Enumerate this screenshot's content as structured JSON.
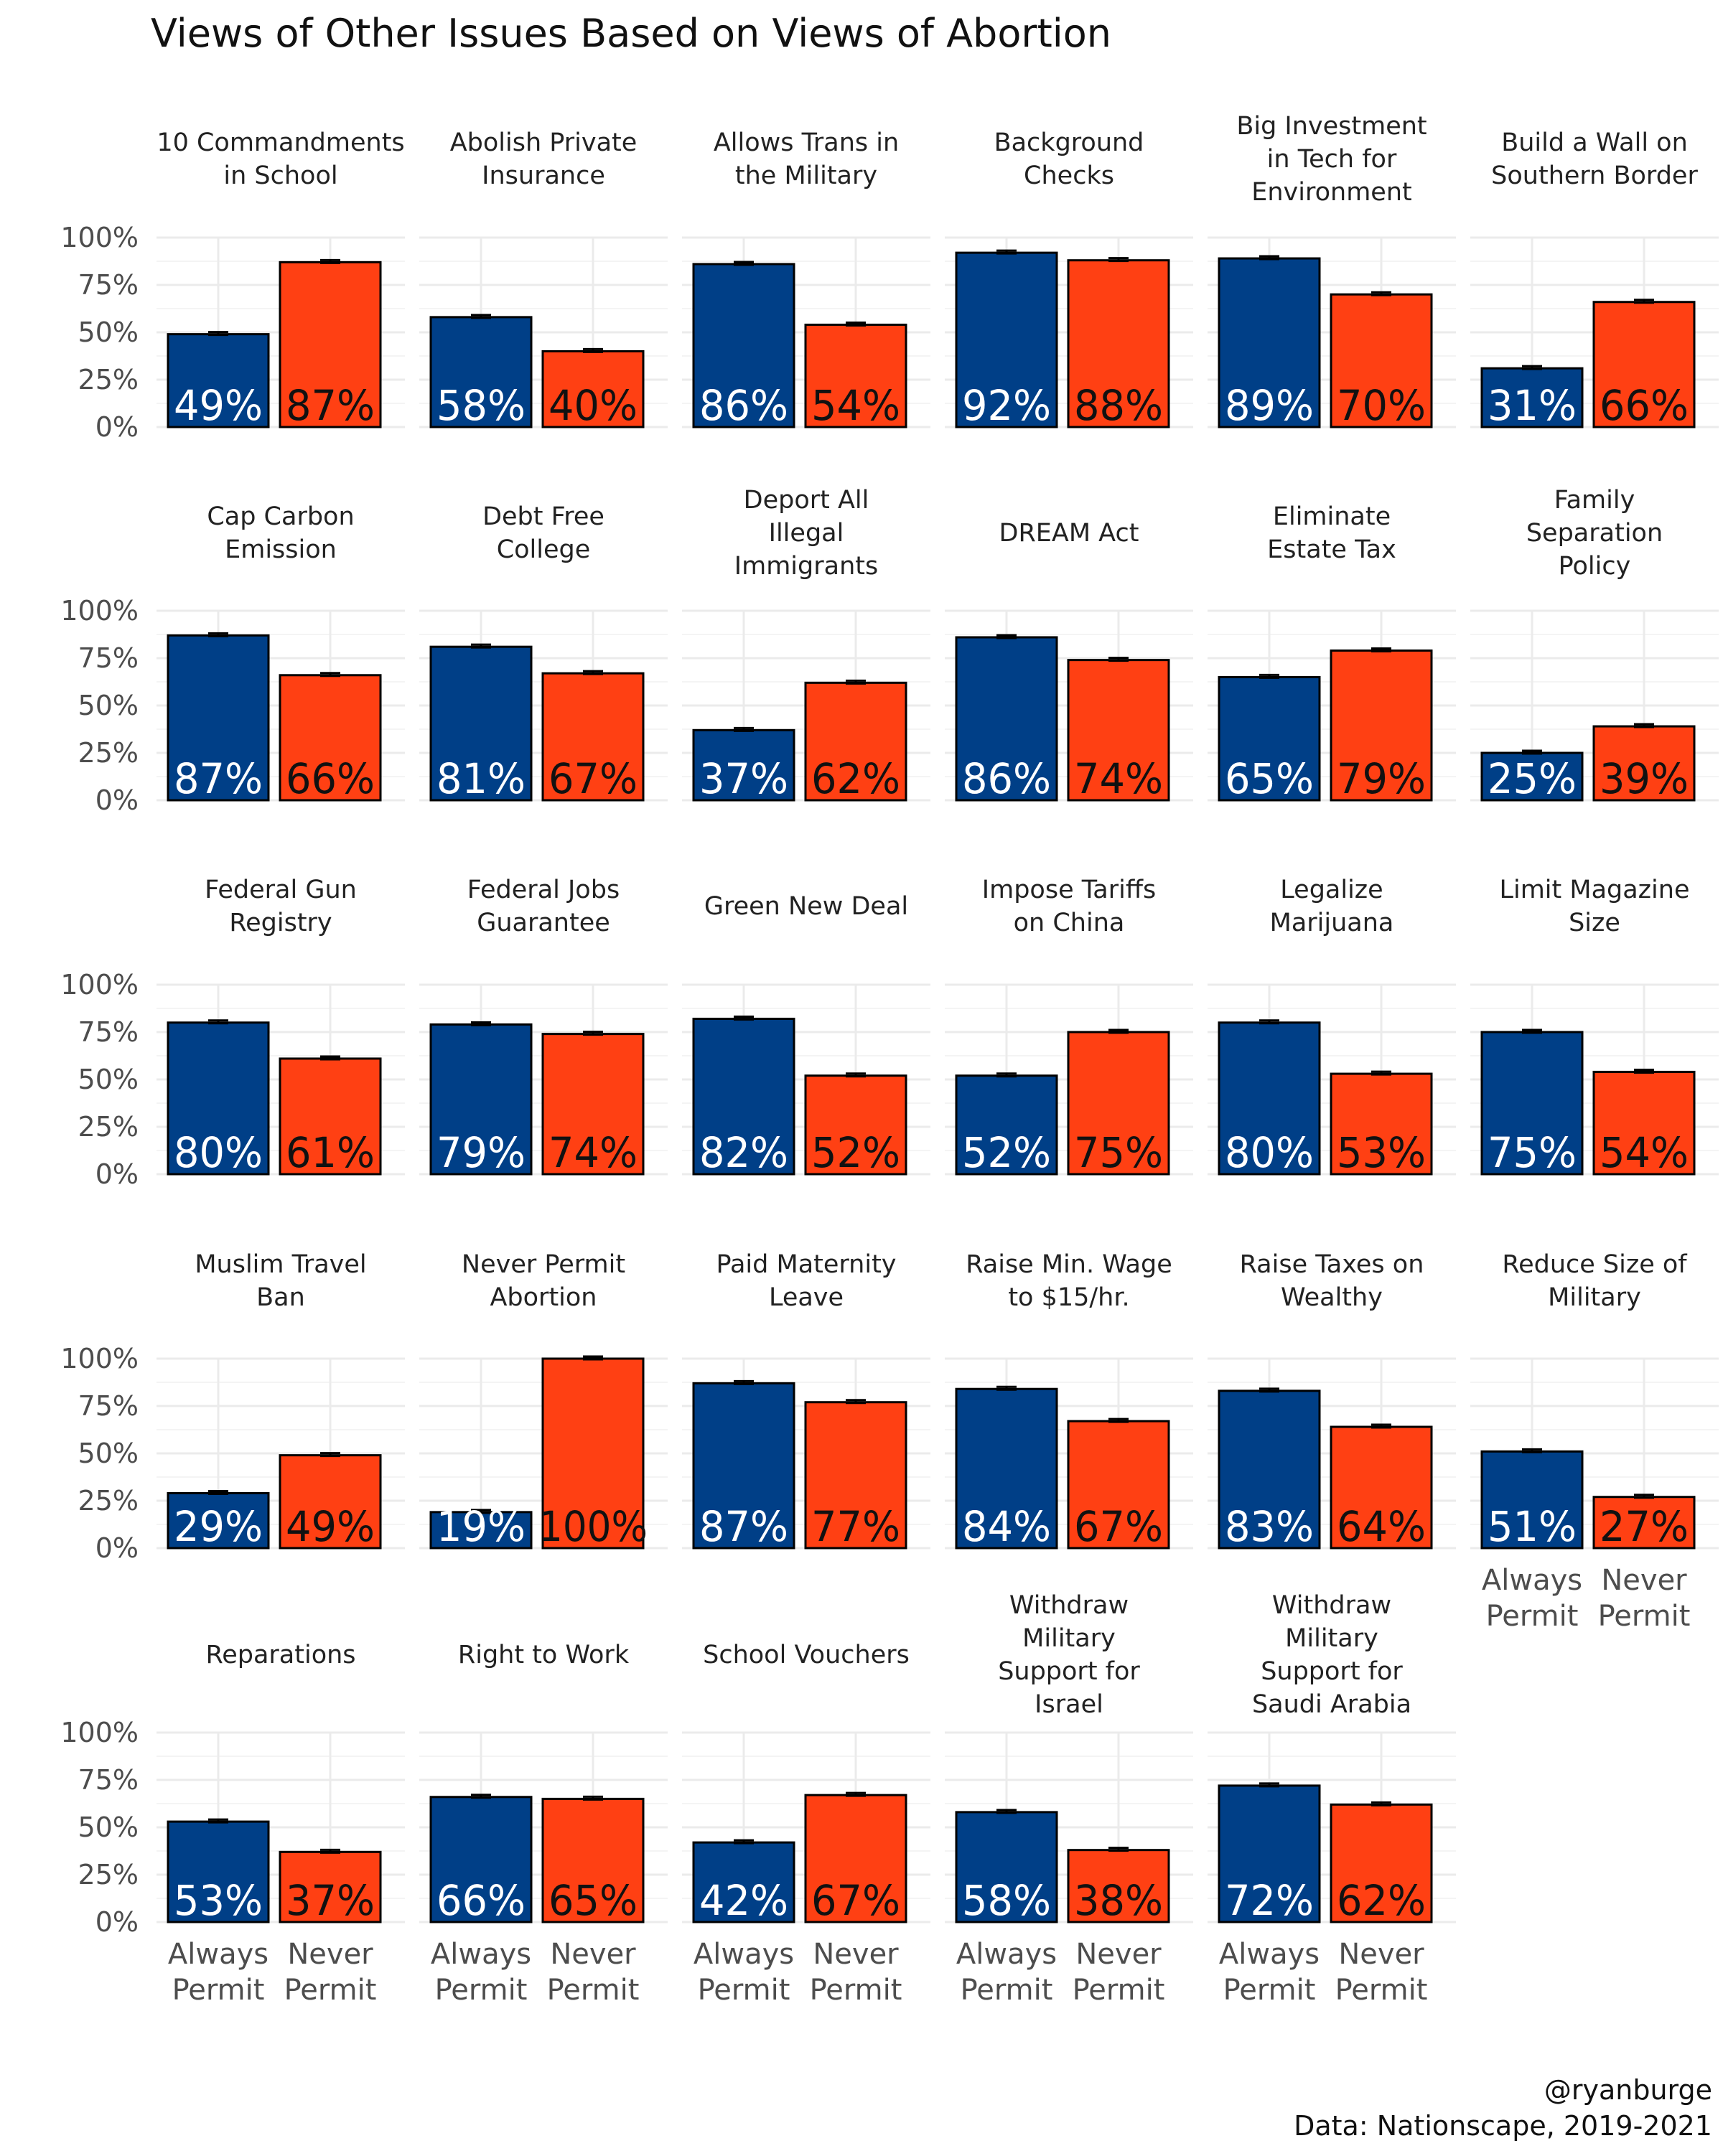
{
  "title": "Views of Other Issues Based on Views of Abortion",
  "caption": [
    "@ryanburge",
    "Data: Nationscape, 2019-2021"
  ],
  "colors": {
    "always": "#003F87",
    "never": "#FF4013",
    "outline": "#000000"
  },
  "chart_data": {
    "type": "bar",
    "layout": "faceted 6 columns",
    "categories": [
      "Always Permit",
      "Never Permit"
    ],
    "category_tick_lines": [
      [
        "Always",
        "Permit"
      ],
      [
        "Never",
        "Permit"
      ]
    ],
    "ylim": [
      0,
      1
    ],
    "yticks": [
      {
        "value": 0,
        "label": "0%"
      },
      {
        "value": 0.25,
        "label": "25%"
      },
      {
        "value": 0.5,
        "label": "50%"
      },
      {
        "value": 0.75,
        "label": "75%"
      },
      {
        "value": 1,
        "label": "100%"
      }
    ],
    "grid": true,
    "error_bars": true,
    "panels": [
      {
        "title": [
          "10 Commandments",
          "in School"
        ],
        "values": [
          0.49,
          0.87
        ],
        "labels": [
          "49%",
          "87%"
        ]
      },
      {
        "title": [
          "Abolish Private",
          "Insurance"
        ],
        "values": [
          0.58,
          0.4
        ],
        "labels": [
          "58%",
          "40%"
        ]
      },
      {
        "title": [
          "Allows Trans in",
          "the Military"
        ],
        "values": [
          0.86,
          0.54
        ],
        "labels": [
          "86%",
          "54%"
        ]
      },
      {
        "title": [
          "Background",
          "Checks"
        ],
        "values": [
          0.92,
          0.88
        ],
        "labels": [
          "92%",
          "88%"
        ]
      },
      {
        "title": [
          "Big Investment",
          "in Tech for",
          "Environment"
        ],
        "values": [
          0.89,
          0.7
        ],
        "labels": [
          "89%",
          "70%"
        ]
      },
      {
        "title": [
          "Build a Wall on",
          "Southern Border"
        ],
        "values": [
          0.31,
          0.66
        ],
        "labels": [
          "31%",
          "66%"
        ]
      },
      {
        "title": [
          "Cap Carbon",
          "Emission"
        ],
        "values": [
          0.87,
          0.66
        ],
        "labels": [
          "87%",
          "66%"
        ]
      },
      {
        "title": [
          "Debt Free",
          "College"
        ],
        "values": [
          0.81,
          0.67
        ],
        "labels": [
          "81%",
          "67%"
        ]
      },
      {
        "title": [
          "Deport All",
          "Illegal",
          "Immigrants"
        ],
        "values": [
          0.37,
          0.62
        ],
        "labels": [
          "37%",
          "62%"
        ]
      },
      {
        "title": [
          "DREAM Act"
        ],
        "values": [
          0.86,
          0.74
        ],
        "labels": [
          "86%",
          "74%"
        ]
      },
      {
        "title": [
          "Eliminate",
          "Estate Tax"
        ],
        "values": [
          0.65,
          0.79
        ],
        "labels": [
          "65%",
          "79%"
        ]
      },
      {
        "title": [
          "Family",
          "Separation",
          "Policy"
        ],
        "values": [
          0.25,
          0.39
        ],
        "labels": [
          "25%",
          "39%"
        ]
      },
      {
        "title": [
          "Federal Gun",
          "Registry"
        ],
        "values": [
          0.8,
          0.61
        ],
        "labels": [
          "80%",
          "61%"
        ]
      },
      {
        "title": [
          "Federal Jobs",
          "Guarantee"
        ],
        "values": [
          0.79,
          0.74
        ],
        "labels": [
          "79%",
          "74%"
        ]
      },
      {
        "title": [
          "Green New Deal"
        ],
        "values": [
          0.82,
          0.52
        ],
        "labels": [
          "82%",
          "52%"
        ]
      },
      {
        "title": [
          "Impose Tariffs",
          "on China"
        ],
        "values": [
          0.52,
          0.75
        ],
        "labels": [
          "52%",
          "75%"
        ]
      },
      {
        "title": [
          "Legalize",
          "Marijuana"
        ],
        "values": [
          0.8,
          0.53
        ],
        "labels": [
          "80%",
          "53%"
        ]
      },
      {
        "title": [
          "Limit Magazine",
          "Size"
        ],
        "values": [
          0.75,
          0.54
        ],
        "labels": [
          "75%",
          "54%"
        ]
      },
      {
        "title": [
          "Muslim Travel",
          "Ban"
        ],
        "values": [
          0.29,
          0.49
        ],
        "labels": [
          "29%",
          "49%"
        ]
      },
      {
        "title": [
          "Never Permit",
          "Abortion"
        ],
        "values": [
          0.19,
          1.0
        ],
        "labels": [
          "19%",
          "100%"
        ]
      },
      {
        "title": [
          "Paid Maternity",
          "Leave"
        ],
        "values": [
          0.87,
          0.77
        ],
        "labels": [
          "87%",
          "77%"
        ]
      },
      {
        "title": [
          "Raise Min. Wage",
          "to $15/hr."
        ],
        "values": [
          0.84,
          0.67
        ],
        "labels": [
          "84%",
          "67%"
        ]
      },
      {
        "title": [
          "Raise Taxes on",
          "Wealthy"
        ],
        "values": [
          0.83,
          0.64
        ],
        "labels": [
          "83%",
          "64%"
        ]
      },
      {
        "title": [
          "Reduce Size of",
          "Military"
        ],
        "values": [
          0.51,
          0.27
        ],
        "labels": [
          "51%",
          "27%"
        ]
      },
      {
        "title": [
          "Reparations"
        ],
        "values": [
          0.53,
          0.37
        ],
        "labels": [
          "53%",
          "37%"
        ]
      },
      {
        "title": [
          "Right to Work"
        ],
        "values": [
          0.66,
          0.65
        ],
        "labels": [
          "66%",
          "65%"
        ]
      },
      {
        "title": [
          "School Vouchers"
        ],
        "values": [
          0.42,
          0.67
        ],
        "labels": [
          "42%",
          "67%"
        ]
      },
      {
        "title": [
          "Withdraw",
          "Military",
          "Support for",
          "Israel"
        ],
        "values": [
          0.58,
          0.38
        ],
        "labels": [
          "58%",
          "38%"
        ]
      },
      {
        "title": [
          "Withdraw",
          "Military",
          "Support for",
          "Saudi Arabia"
        ],
        "values": [
          0.72,
          0.62
        ],
        "labels": [
          "72%",
          "62%"
        ]
      }
    ]
  }
}
